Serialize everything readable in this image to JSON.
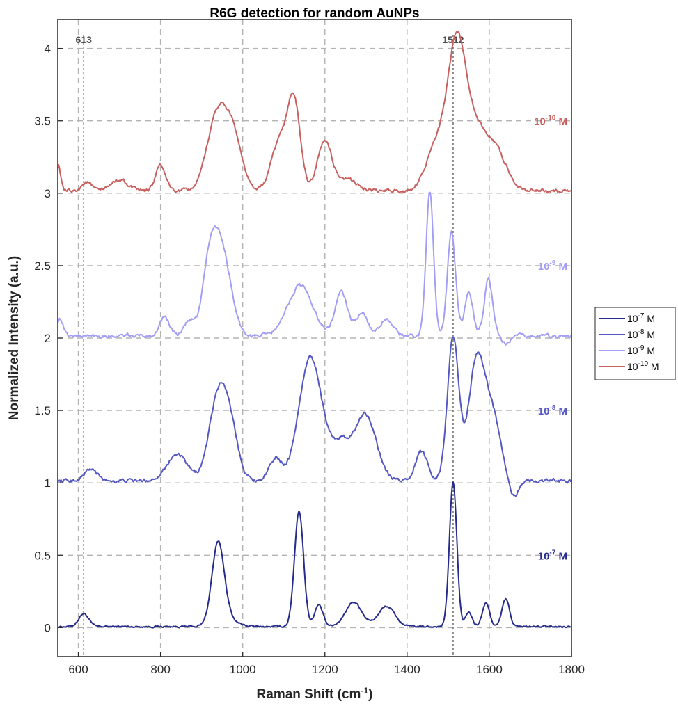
{
  "chart_data": {
    "type": "line",
    "title": "R6G detection for random AuNPs",
    "xlabel": "Raman Shift (cm",
    "xlabel_sup": "-1",
    "xlabel_suffix": ")",
    "ylabel": "Normalized Intensity (a.u.)",
    "xlim": [
      550,
      1800
    ],
    "ylim": [
      -0.2,
      4.2
    ],
    "xticks": [
      600,
      800,
      1000,
      1200,
      1400,
      1600,
      1800
    ],
    "yticks": [
      0,
      0.5,
      1,
      1.5,
      2,
      2.5,
      3,
      3.5,
      4
    ],
    "ytick_labels": [
      "0",
      "0.5",
      "1",
      "1.5",
      "2",
      "2.5",
      "3",
      "3.5",
      "4"
    ],
    "grid": true,
    "legend_position": "outside-right",
    "reference_lines": [
      {
        "x": 613,
        "label": "613"
      },
      {
        "x": 1512,
        "label": "1512"
      }
    ],
    "series": [
      {
        "name": "10",
        "exp": "-7",
        "unit": " M",
        "color": "#262B8C",
        "offset": 0,
        "label_y": 0.5,
        "peaks": [
          [
            613,
            0.09,
            12
          ],
          [
            940,
            0.55,
            15
          ],
          [
            960,
            0.05,
            25
          ],
          [
            1137,
            0.8,
            11
          ],
          [
            1185,
            0.15,
            10
          ],
          [
            1270,
            0.17,
            20
          ],
          [
            1350,
            0.14,
            20
          ],
          [
            1512,
            1.0,
            9
          ],
          [
            1550,
            0.1,
            8
          ],
          [
            1592,
            0.16,
            9
          ],
          [
            1640,
            0.19,
            9
          ]
        ],
        "noise": 0.012
      },
      {
        "name": "10",
        "exp": "-8",
        "unit": " M",
        "color": "#5558C4",
        "offset": 1,
        "label_y": 1.5,
        "peaks": [
          [
            630,
            0.08,
            15
          ],
          [
            840,
            0.18,
            25
          ],
          [
            940,
            0.55,
            22
          ],
          [
            970,
            0.3,
            20
          ],
          [
            1080,
            0.15,
            15
          ],
          [
            1165,
            0.85,
            28
          ],
          [
            1240,
            0.25,
            25
          ],
          [
            1300,
            0.45,
            25
          ],
          [
            1435,
            0.2,
            15
          ],
          [
            1512,
            0.98,
            14
          ],
          [
            1570,
            0.85,
            20
          ],
          [
            1610,
            0.4,
            18
          ],
          [
            1660,
            -0.12,
            10
          ]
        ],
        "noise": 0.025
      },
      {
        "name": "10",
        "exp": "-9",
        "unit": " M",
        "color": "#A39EF5",
        "offset": 2,
        "label_y": 2.5,
        "peaks": [
          [
            555,
            0.12,
            8
          ],
          [
            810,
            0.13,
            12
          ],
          [
            870,
            0.1,
            12
          ],
          [
            920,
            0.45,
            18
          ],
          [
            950,
            0.55,
            22
          ],
          [
            1140,
            0.35,
            30
          ],
          [
            1240,
            0.3,
            15
          ],
          [
            1290,
            0.15,
            15
          ],
          [
            1350,
            0.12,
            15
          ],
          [
            1455,
            1.0,
            9
          ],
          [
            1508,
            0.72,
            10
          ],
          [
            1550,
            0.3,
            10
          ],
          [
            1598,
            0.4,
            10
          ],
          [
            1640,
            -0.06,
            10
          ]
        ],
        "noise": 0.025
      },
      {
        "name": "10",
        "exp": "-10",
        "unit": " M",
        "color": "#C8605F",
        "offset": 3,
        "label_y": 3.5,
        "peaks": [
          [
            552,
            0.18,
            5
          ],
          [
            620,
            0.06,
            12
          ],
          [
            700,
            0.08,
            20
          ],
          [
            800,
            0.18,
            12
          ],
          [
            940,
            0.55,
            25
          ],
          [
            980,
            0.3,
            20
          ],
          [
            1090,
            0.35,
            20
          ],
          [
            1125,
            0.6,
            15
          ],
          [
            1200,
            0.35,
            18
          ],
          [
            1260,
            0.08,
            20
          ],
          [
            1470,
            0.3,
            25
          ],
          [
            1520,
            0.95,
            22
          ],
          [
            1560,
            0.35,
            25
          ],
          [
            1610,
            0.3,
            30
          ]
        ],
        "noise": 0.025
      }
    ]
  }
}
